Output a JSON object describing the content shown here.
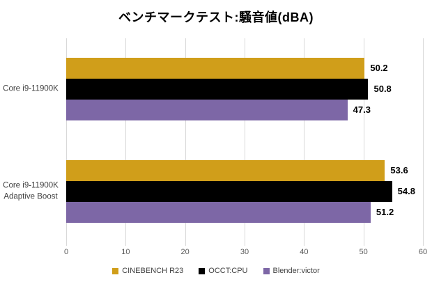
{
  "title": "ベンチマークテスト:騒音値(dBA)",
  "chart_data": {
    "type": "bar",
    "orientation": "horizontal",
    "title": "ベンチマークテスト:騒音値(dBA)",
    "categories": [
      "Core i9-11900K",
      "Core i9-11900K\nAdaptive Boost"
    ],
    "series": [
      {
        "name": "CINEBENCH R23",
        "color": "#D09E1A",
        "values": [
          50.2,
          53.6
        ]
      },
      {
        "name": "OCCT:CPU",
        "color": "#000000",
        "values": [
          50.8,
          54.8
        ]
      },
      {
        "name": "Blender:victor",
        "color": "#7D67A6",
        "values": [
          47.3,
          51.2
        ]
      }
    ],
    "xlabel": "",
    "ylabel": "",
    "xlim": [
      0,
      60
    ],
    "xticks": [
      0,
      10,
      20,
      30,
      40,
      50,
      60
    ],
    "grid": true,
    "data_labels": true,
    "legend_position": "bottom",
    "colors": {
      "gridline": "#d9d9d9",
      "tick_label": "#595959",
      "category_label": "#404040",
      "data_label": "#000000",
      "background": "#ffffff"
    }
  }
}
